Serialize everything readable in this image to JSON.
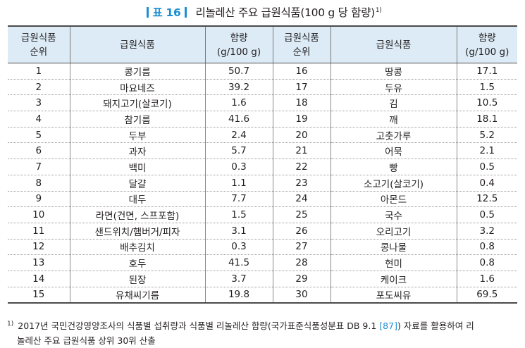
{
  "title": {
    "table_label": "표 16",
    "text": "리놀레산 주요 급원식품(100 g 당 함량)",
    "footnote_mark": "1)"
  },
  "headers": {
    "rank": "급원식품\n순위",
    "food": "급원식품",
    "value": "함량\n(g/100 g)"
  },
  "left_rows": [
    {
      "rank": "1",
      "food": "콩기름",
      "value": "50.7"
    },
    {
      "rank": "2",
      "food": "마요네즈",
      "value": "39.2"
    },
    {
      "rank": "3",
      "food": "돼지고기(살코기)",
      "value": "1.6"
    },
    {
      "rank": "4",
      "food": "참기름",
      "value": "41.6"
    },
    {
      "rank": "5",
      "food": "두부",
      "value": "2.4"
    },
    {
      "rank": "6",
      "food": "과자",
      "value": "5.7"
    },
    {
      "rank": "7",
      "food": "백미",
      "value": "0.3"
    },
    {
      "rank": "8",
      "food": "달걀",
      "value": "1.1"
    },
    {
      "rank": "9",
      "food": "대두",
      "value": "7.7"
    },
    {
      "rank": "10",
      "food": "라면(건면, 스프포함)",
      "value": "1.5"
    },
    {
      "rank": "11",
      "food": "샌드위치/햄버거/피자",
      "value": "3.1"
    },
    {
      "rank": "12",
      "food": "배추김치",
      "value": "0.3"
    },
    {
      "rank": "13",
      "food": "호두",
      "value": "41.5"
    },
    {
      "rank": "14",
      "food": "된장",
      "value": "3.7"
    },
    {
      "rank": "15",
      "food": "유채씨기름",
      "value": "19.8"
    }
  ],
  "right_rows": [
    {
      "rank": "16",
      "food": "땅콩",
      "value": "17.1"
    },
    {
      "rank": "17",
      "food": "두유",
      "value": "1.5"
    },
    {
      "rank": "18",
      "food": "김",
      "value": "10.5"
    },
    {
      "rank": "19",
      "food": "깨",
      "value": "18.1"
    },
    {
      "rank": "20",
      "food": "고춧가루",
      "value": "5.2"
    },
    {
      "rank": "21",
      "food": "어묵",
      "value": "2.1"
    },
    {
      "rank": "22",
      "food": "빵",
      "value": "0.5"
    },
    {
      "rank": "23",
      "food": "소고기(살코기)",
      "value": "0.4"
    },
    {
      "rank": "24",
      "food": "아몬드",
      "value": "12.5"
    },
    {
      "rank": "25",
      "food": "국수",
      "value": "0.5"
    },
    {
      "rank": "26",
      "food": "오리고기",
      "value": "3.2"
    },
    {
      "rank": "27",
      "food": "콩나물",
      "value": "0.8"
    },
    {
      "rank": "28",
      "food": "현미",
      "value": "0.8"
    },
    {
      "rank": "29",
      "food": "케이크",
      "value": "1.6"
    },
    {
      "rank": "30",
      "food": "포도씨유",
      "value": "69.5"
    }
  ],
  "footnote": {
    "mark": "1)",
    "text_before": "2017년 국민건강영양조사의 식품별 섭취량과 식품별 리놀레산 함량(국가표준식품성분표 DB 9.1 ",
    "ref": "[87]",
    "text_after": ") 자료를 활용하여 리",
    "line2": "놀레산 주요 급원식품 상위 30위 산출"
  },
  "colors": {
    "accent": "#1b8fd2",
    "header_bg": "#dcebf6"
  }
}
